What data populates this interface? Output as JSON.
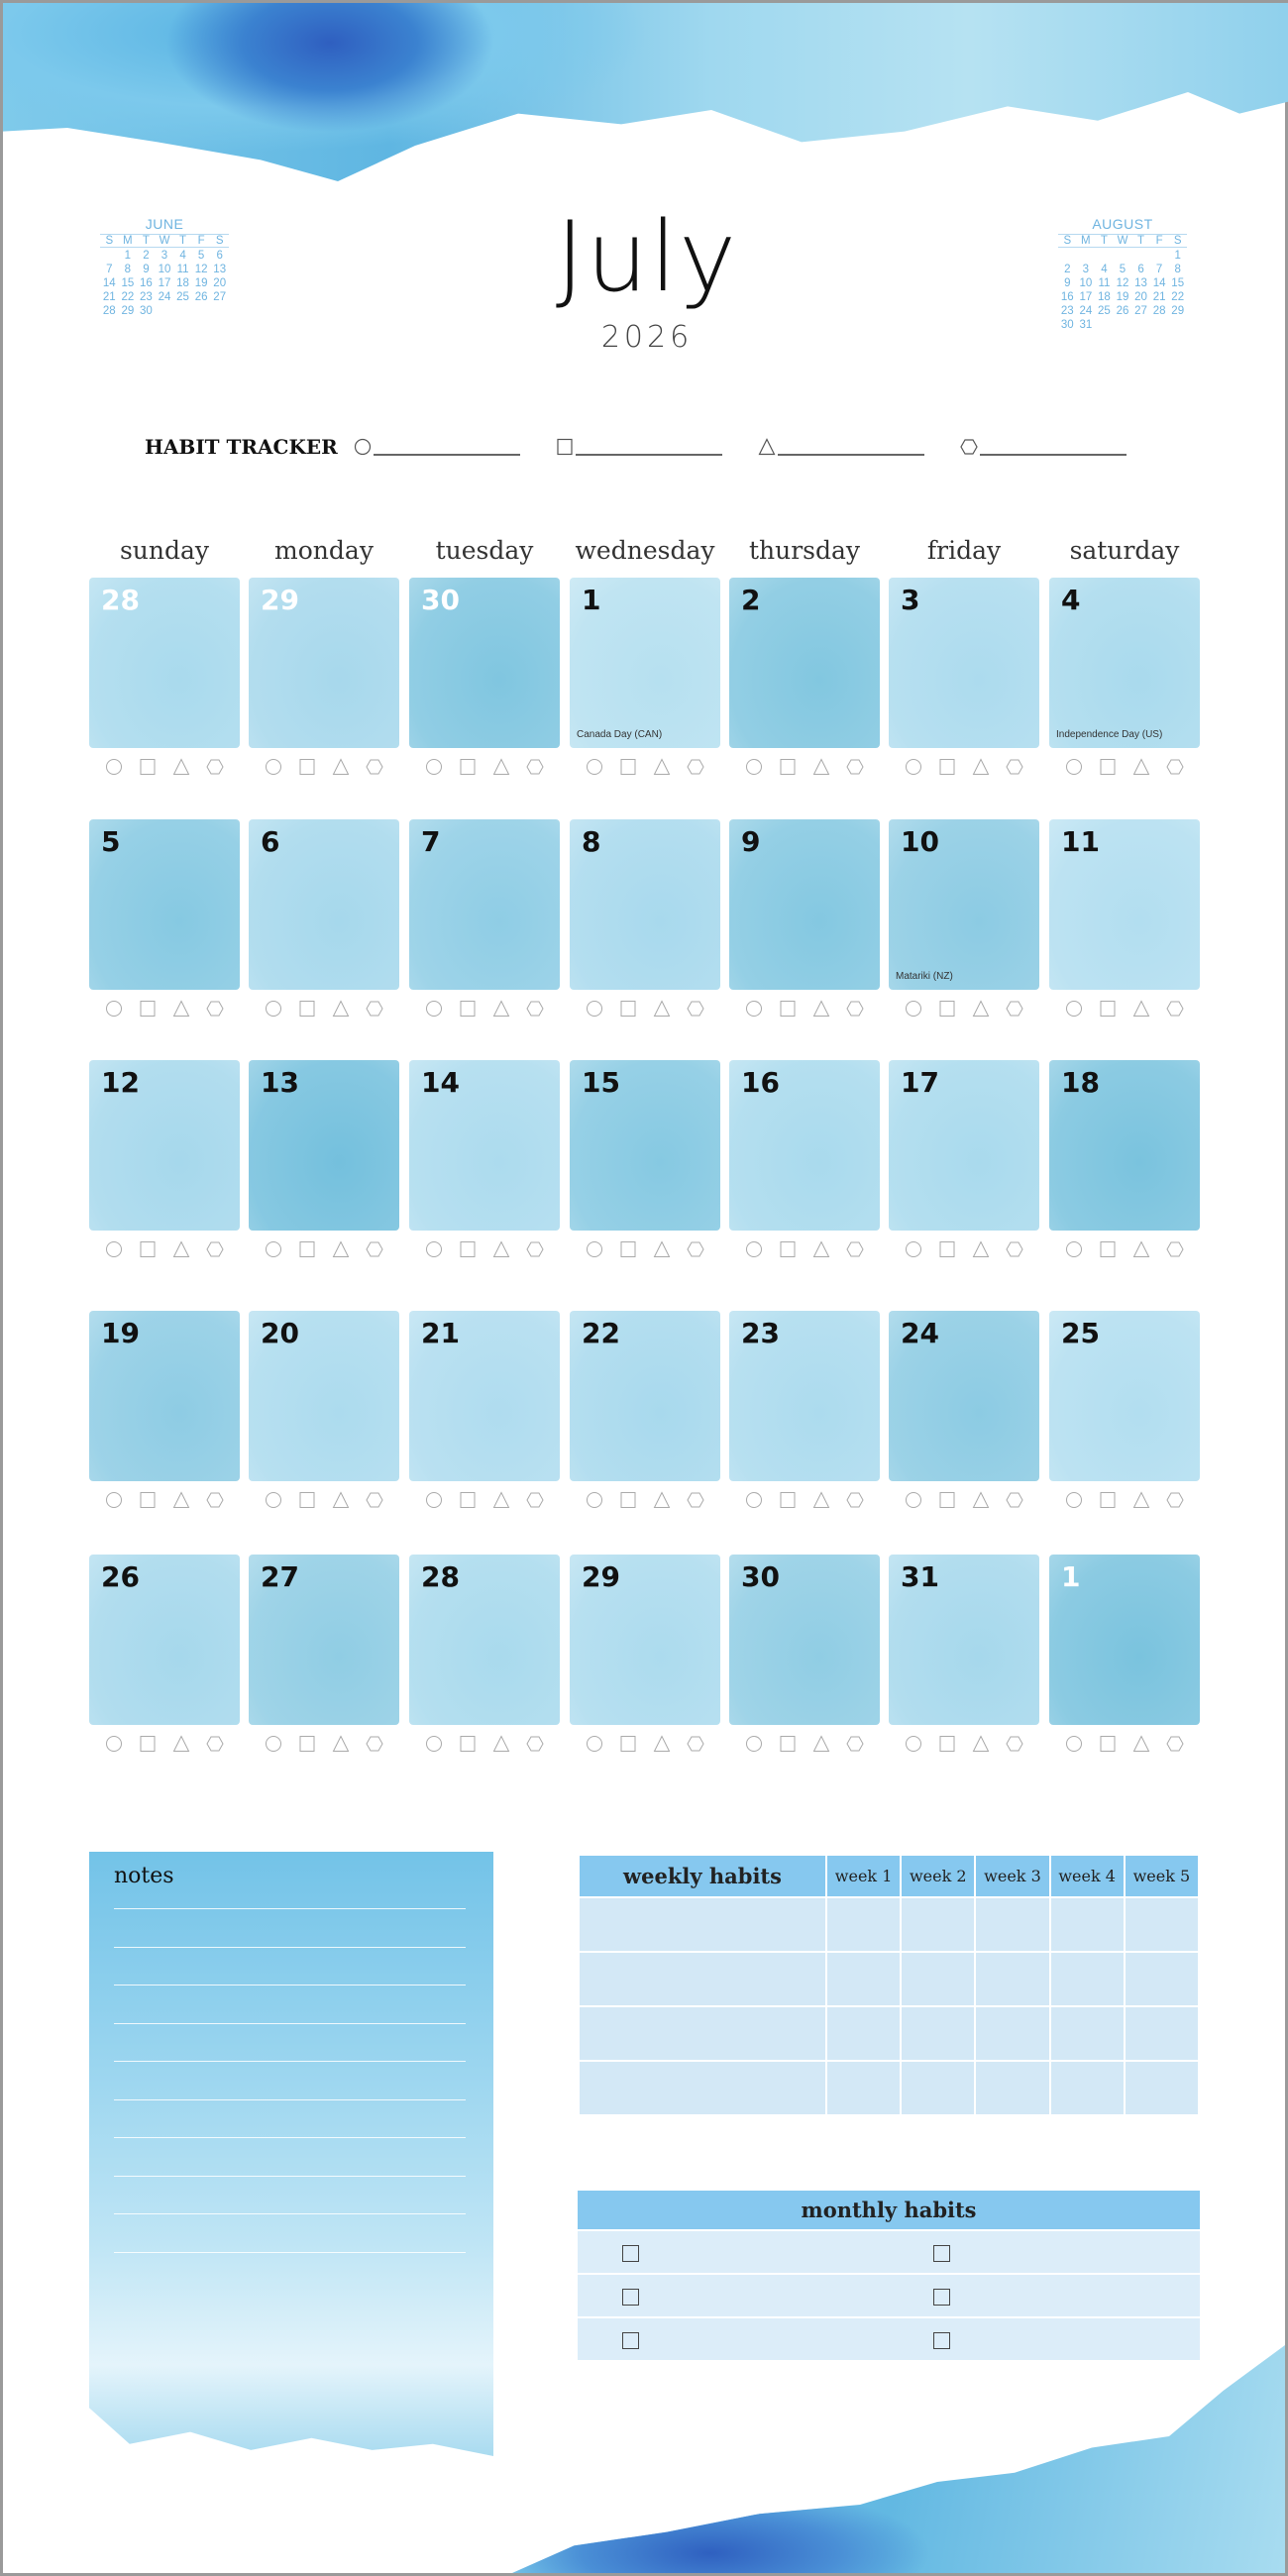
{
  "header": {
    "month": "July",
    "year": "2026"
  },
  "mini_prev": {
    "title": "JUNE",
    "dow": [
      "S",
      "M",
      "T",
      "W",
      "T",
      "F",
      "S"
    ],
    "offset": 1,
    "days": 30
  },
  "mini_next": {
    "title": "AUGUST",
    "dow": [
      "S",
      "M",
      "T",
      "W",
      "T",
      "F",
      "S"
    ],
    "offset": 6,
    "days": 31
  },
  "habit_tracker": {
    "label": "HABIT TRACKER",
    "shapes": [
      "circle-icon",
      "square-icon",
      "triangle-icon",
      "hexagon-icon"
    ]
  },
  "day_names": [
    "sunday",
    "monday",
    "tuesday",
    "wednesday",
    "thursday",
    "friday",
    "saturday"
  ],
  "weeks": [
    [
      {
        "d": "28",
        "m": true,
        "c": "#a9daed"
      },
      {
        "d": "29",
        "m": true,
        "c": "#a7d8ec"
      },
      {
        "d": "30",
        "m": true,
        "c": "#80c6e0"
      },
      {
        "d": "1",
        "h": "Canada Day (CAN)",
        "c": "#b6e0f0"
      },
      {
        "d": "2",
        "c": "#82c7e0"
      },
      {
        "d": "3",
        "c": "#acdbee"
      },
      {
        "d": "4",
        "h": "Independence Day (US)",
        "c": "#a9daed"
      }
    ],
    [
      {
        "d": "5",
        "c": "#86c9e2"
      },
      {
        "d": "6",
        "c": "#a6d8ec"
      },
      {
        "d": "7",
        "c": "#8fcde5"
      },
      {
        "d": "8",
        "c": "#a8d9ed"
      },
      {
        "d": "9",
        "c": "#84c8e1"
      },
      {
        "d": "10",
        "h": "Matariki (NZ)",
        "c": "#8ccbe3"
      },
      {
        "d": "11",
        "c": "#b2def0"
      }
    ],
    [
      {
        "d": "12",
        "c": "#a6d8ec"
      },
      {
        "d": "13",
        "c": "#74c0dd"
      },
      {
        "d": "14",
        "c": "#acdbee"
      },
      {
        "d": "15",
        "c": "#86c9e2"
      },
      {
        "d": "16",
        "c": "#a9daed"
      },
      {
        "d": "17",
        "c": "#a9daed"
      },
      {
        "d": "18",
        "c": "#7ac3de"
      }
    ],
    [
      {
        "d": "19",
        "c": "#8ecce4"
      },
      {
        "d": "20",
        "c": "#acdbee"
      },
      {
        "d": "21",
        "c": "#afdcef"
      },
      {
        "d": "22",
        "c": "#a8d9ed"
      },
      {
        "d": "23",
        "c": "#acdbee"
      },
      {
        "d": "24",
        "c": "#8ccbe3"
      },
      {
        "d": "25",
        "c": "#b2def0"
      }
    ],
    [
      {
        "d": "26",
        "c": "#a6d8ec"
      },
      {
        "d": "27",
        "c": "#90cde4"
      },
      {
        "d": "28",
        "c": "#a9daed"
      },
      {
        "d": "29",
        "c": "#acdbee"
      },
      {
        "d": "30",
        "c": "#90cde4"
      },
      {
        "d": "31",
        "c": "#a6d8ec"
      },
      {
        "d": "1",
        "m": true,
        "c": "#7ac3de"
      }
    ]
  ],
  "notes": {
    "title": "notes"
  },
  "weekly_habits": {
    "title": "weekly habits",
    "columns": [
      "week 1",
      "week 2",
      "week 3",
      "week 4",
      "week 5"
    ],
    "rows": 4
  },
  "monthly_habits": {
    "title": "monthly habits",
    "rows": 3
  },
  "colors": {
    "header_blue": "#86c8ef",
    "row_blue": "#d3e8f6",
    "mini_cal_text": "#6fb4e0"
  }
}
